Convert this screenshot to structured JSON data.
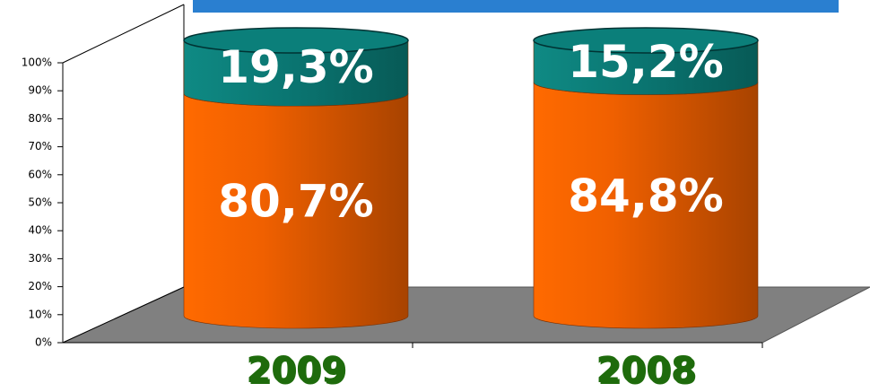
{
  "chart_data": {
    "type": "bar3d-stacked",
    "categories": [
      "2009",
      "2008"
    ],
    "series": [
      {
        "color": "#ff6600",
        "values": [
          80.7,
          84.8
        ],
        "value_labels": [
          "80,7%",
          "84,8%"
        ]
      },
      {
        "color": "#0b7f7a",
        "values": [
          19.3,
          15.2
        ],
        "value_labels": [
          "19,3%",
          "15,2%"
        ]
      }
    ],
    "ylim": [
      0,
      100
    ],
    "yticks": [
      {
        "value": 0,
        "label": "0%"
      },
      {
        "value": 10,
        "label": "10%"
      },
      {
        "value": 20,
        "label": "20%"
      },
      {
        "value": 30,
        "label": "30%"
      },
      {
        "value": 40,
        "label": "40%"
      },
      {
        "value": 50,
        "label": "50%"
      },
      {
        "value": 60,
        "label": "60%"
      },
      {
        "value": 70,
        "label": "70%"
      },
      {
        "value": 80,
        "label": "80%"
      },
      {
        "value": 90,
        "label": "90%"
      },
      {
        "value": 100,
        "label": "100%"
      }
    ]
  }
}
